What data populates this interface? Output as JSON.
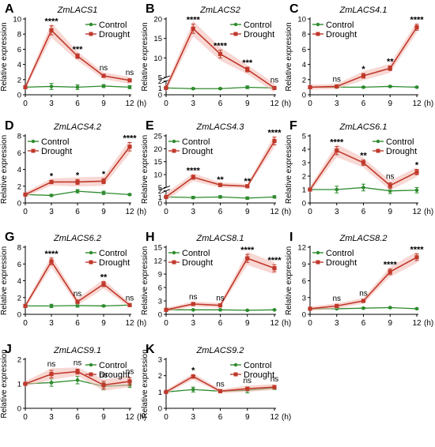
{
  "figure": {
    "x_axis_unit": "(h)",
    "y_axis_label": "Relative expression",
    "legend": [
      "Control",
      "Drought"
    ]
  },
  "colors": {
    "control": "#2e8b2e",
    "drought": "#c0392b",
    "drought_fill": "#f3b8b0",
    "axis": "#000000"
  },
  "chart_data": [
    {
      "panel": "A",
      "title": "ZmLACS1",
      "type": "line",
      "ylabel": "Relative expression",
      "x_unit": "(h)",
      "x": [
        0,
        3,
        6,
        9,
        12
      ],
      "ylim": [
        0,
        10
      ],
      "yticks": [
        0,
        2,
        4,
        6,
        8,
        10
      ],
      "legend_position": "top-right",
      "series": [
        {
          "name": "Control",
          "values": [
            1.0,
            1.1,
            1.0,
            1.15,
            1.0
          ],
          "errors": [
            0.1,
            0.4,
            0.3,
            0.2,
            0.2
          ]
        },
        {
          "name": "Drought",
          "values": [
            1.0,
            8.5,
            5.1,
            2.5,
            1.9
          ],
          "errors": [
            0.1,
            0.6,
            0.3,
            0.2,
            0.2
          ]
        }
      ],
      "significance": [
        "",
        "****",
        "***",
        "ns",
        "ns"
      ]
    },
    {
      "panel": "B",
      "title": "ZmLACS2",
      "type": "line",
      "ylabel": "Relative expression",
      "x_unit": "(h)",
      "x": [
        0,
        3,
        6,
        9,
        12
      ],
      "ylim": [
        0,
        20
      ],
      "yticks": [
        0,
        1,
        2,
        5,
        10,
        15,
        20
      ],
      "axis_break": [
        2,
        5
      ],
      "legend_position": "top-right",
      "series": [
        {
          "name": "Control",
          "values": [
            1.0,
            0.9,
            0.9,
            1.1,
            1.0
          ],
          "errors": [
            0.1,
            0.1,
            0.1,
            0.2,
            0.1
          ]
        },
        {
          "name": "Drought",
          "values": [
            1.0,
            17.5,
            11.0,
            7.0,
            1.0
          ],
          "errors": [
            0.1,
            1.2,
            1.0,
            0.6,
            0.2
          ]
        }
      ],
      "significance": [
        "",
        "****",
        "****",
        "***",
        "ns"
      ]
    },
    {
      "panel": "C",
      "title": "ZmLACS4.1",
      "type": "line",
      "ylabel": "Relative expression",
      "x_unit": "(h)",
      "x": [
        0,
        3,
        6,
        9,
        12
      ],
      "ylim": [
        0,
        10
      ],
      "yticks": [
        0,
        2,
        4,
        6,
        8,
        10
      ],
      "legend_position": "top-left",
      "series": [
        {
          "name": "Control",
          "values": [
            1.0,
            1.0,
            1.0,
            1.1,
            1.0
          ],
          "errors": [
            0.1,
            0.1,
            0.1,
            0.1,
            0.1
          ]
        },
        {
          "name": "Drought",
          "values": [
            1.0,
            1.1,
            2.5,
            3.5,
            8.9
          ],
          "errors": [
            0.1,
            0.1,
            0.3,
            0.3,
            0.4
          ]
        }
      ],
      "significance": [
        "",
        "ns",
        "*",
        "**",
        "****"
      ]
    },
    {
      "panel": "D",
      "title": "ZmLACS4.2",
      "type": "line",
      "ylabel": "Relative expression",
      "x_unit": "(h)",
      "x": [
        0,
        3,
        6,
        9,
        12
      ],
      "ylim": [
        0,
        8
      ],
      "yticks": [
        0,
        2,
        4,
        6,
        8
      ],
      "legend_position": "top-left",
      "series": [
        {
          "name": "Control",
          "values": [
            1.0,
            0.9,
            1.4,
            1.2,
            1.0
          ],
          "errors": [
            0.1,
            0.1,
            0.2,
            0.2,
            0.1
          ]
        },
        {
          "name": "Drought",
          "values": [
            1.0,
            2.5,
            2.5,
            2.6,
            6.7
          ],
          "errors": [
            0.1,
            0.2,
            0.3,
            0.3,
            0.5
          ]
        }
      ],
      "significance": [
        "",
        "*",
        "*",
        "*",
        "****"
      ]
    },
    {
      "panel": "E",
      "title": "ZmLACS4.3",
      "type": "line",
      "ylabel": "Relative expression",
      "x_unit": "(h)",
      "x": [
        0,
        3,
        6,
        9,
        12
      ],
      "ylim": [
        0,
        25
      ],
      "yticks": [
        0,
        1,
        2,
        5,
        10,
        15,
        20,
        25
      ],
      "axis_break": [
        2,
        5
      ],
      "legend_position": "top-left",
      "series": [
        {
          "name": "Control",
          "values": [
            1.0,
            0.9,
            1.0,
            0.8,
            1.0
          ],
          "errors": [
            0.1,
            0.2,
            0.2,
            0.2,
            0.2
          ]
        },
        {
          "name": "Drought",
          "values": [
            1.0,
            9.0,
            6.0,
            5.5,
            23.0
          ],
          "errors": [
            0.1,
            0.8,
            0.4,
            0.3,
            1.5
          ]
        }
      ],
      "significance": [
        "",
        "****",
        "**",
        "**",
        "****"
      ]
    },
    {
      "panel": "F",
      "title": "ZmLACS6.1",
      "type": "line",
      "ylabel": "Relative expression",
      "x_unit": "(h)",
      "x": [
        0,
        3,
        6,
        9,
        12
      ],
      "ylim": [
        0,
        5
      ],
      "yticks": [
        0,
        1,
        2,
        3,
        4,
        5
      ],
      "legend_position": "top-right",
      "series": [
        {
          "name": "Control",
          "values": [
            1.0,
            1.0,
            1.15,
            0.9,
            0.95
          ],
          "errors": [
            0.1,
            0.25,
            0.25,
            0.2,
            0.2
          ]
        },
        {
          "name": "Drought",
          "values": [
            1.0,
            3.9,
            3.0,
            1.3,
            2.3
          ],
          "errors": [
            0.1,
            0.3,
            0.2,
            0.2,
            0.2
          ]
        }
      ],
      "significance": [
        "",
        "****",
        "**",
        "ns",
        "*"
      ]
    },
    {
      "panel": "G",
      "title": "ZmLACS6.2",
      "type": "line",
      "ylabel": "Relative expression",
      "x_unit": "(h)",
      "x": [
        0,
        3,
        6,
        9,
        12
      ],
      "ylim": [
        0,
        8
      ],
      "yticks": [
        0,
        2,
        4,
        6,
        8
      ],
      "legend_position": "top-right",
      "series": [
        {
          "name": "Control",
          "values": [
            1.0,
            1.0,
            1.05,
            1.0,
            1.1
          ],
          "errors": [
            0.1,
            0.2,
            0.2,
            0.1,
            0.1
          ]
        },
        {
          "name": "Drought",
          "values": [
            1.0,
            6.3,
            1.5,
            3.6,
            1.1
          ],
          "errors": [
            0.1,
            0.4,
            0.2,
            0.3,
            0.1
          ]
        }
      ],
      "significance": [
        "",
        "****",
        "ns",
        "**",
        "ns"
      ]
    },
    {
      "panel": "H",
      "title": "ZmLACS8.1",
      "type": "line",
      "ylabel": "Relative expression",
      "x_unit": "(h)",
      "x": [
        0,
        3,
        6,
        9,
        12
      ],
      "ylim": [
        0,
        15
      ],
      "yticks": [
        0,
        3,
        6,
        9,
        12,
        15
      ],
      "legend_position": "top-left",
      "series": [
        {
          "name": "Control",
          "values": [
            1.0,
            1.0,
            1.0,
            0.9,
            1.0
          ],
          "errors": [
            0.1,
            0.1,
            0.1,
            0.1,
            0.1
          ]
        },
        {
          "name": "Drought",
          "values": [
            1.0,
            2.3,
            2.0,
            12.5,
            10.3
          ],
          "errors": [
            0.1,
            0.2,
            0.2,
            0.9,
            0.8
          ]
        }
      ],
      "significance": [
        "",
        "ns",
        "ns",
        "****",
        "****"
      ]
    },
    {
      "panel": "I",
      "title": "ZmLACS8.2",
      "type": "line",
      "ylabel": "Relative expression",
      "x_unit": "(h)",
      "x": [
        0,
        3,
        6,
        9,
        12
      ],
      "ylim": [
        0,
        12
      ],
      "yticks": [
        0,
        3,
        6,
        9,
        12
      ],
      "legend_position": "top-left",
      "series": [
        {
          "name": "Control",
          "values": [
            1.0,
            1.0,
            1.1,
            1.2,
            1.0
          ],
          "errors": [
            0.1,
            0.1,
            0.1,
            0.1,
            0.1
          ]
        },
        {
          "name": "Drought",
          "values": [
            1.0,
            1.5,
            2.4,
            7.6,
            10.2
          ],
          "errors": [
            0.1,
            0.2,
            0.2,
            0.5,
            0.6
          ]
        }
      ],
      "significance": [
        "",
        "ns",
        "ns",
        "****",
        "****"
      ]
    },
    {
      "panel": "J",
      "title": "ZmLACS9.1",
      "type": "line",
      "ylabel": "Relative expression",
      "x_unit": "(h)",
      "x": [
        0,
        3,
        6,
        9,
        12
      ],
      "ylim": [
        0,
        2
      ],
      "yticks": [
        0,
        1,
        2
      ],
      "legend_position": "top-right",
      "series": [
        {
          "name": "Control",
          "values": [
            1.0,
            1.05,
            1.15,
            0.9,
            0.95
          ],
          "errors": [
            0.05,
            0.15,
            0.15,
            0.15,
            0.1
          ]
        },
        {
          "name": "Drought",
          "values": [
            1.0,
            1.4,
            1.5,
            0.95,
            1.1
          ],
          "errors": [
            0.05,
            0.15,
            0.1,
            0.15,
            0.15
          ]
        }
      ],
      "significance": [
        "",
        "ns",
        "ns",
        "ns",
        "ns"
      ]
    },
    {
      "panel": "K",
      "title": "ZmLACS9.2",
      "type": "line",
      "ylabel": "Relative expression",
      "x_unit": "(h)",
      "x": [
        0,
        3,
        6,
        9,
        12
      ],
      "ylim": [
        0,
        3
      ],
      "yticks": [
        0,
        1,
        2,
        3
      ],
      "legend_position": "top-right",
      "series": [
        {
          "name": "Control",
          "values": [
            1.0,
            1.15,
            1.05,
            1.1,
            1.25
          ],
          "errors": [
            0.05,
            0.15,
            0.1,
            0.15,
            0.1
          ]
        },
        {
          "name": "Drought",
          "values": [
            1.0,
            1.95,
            1.05,
            1.2,
            1.3
          ],
          "errors": [
            0.05,
            0.1,
            0.05,
            0.1,
            0.1
          ]
        }
      ],
      "significance": [
        "",
        "*",
        "ns",
        "ns",
        "ns"
      ]
    }
  ]
}
